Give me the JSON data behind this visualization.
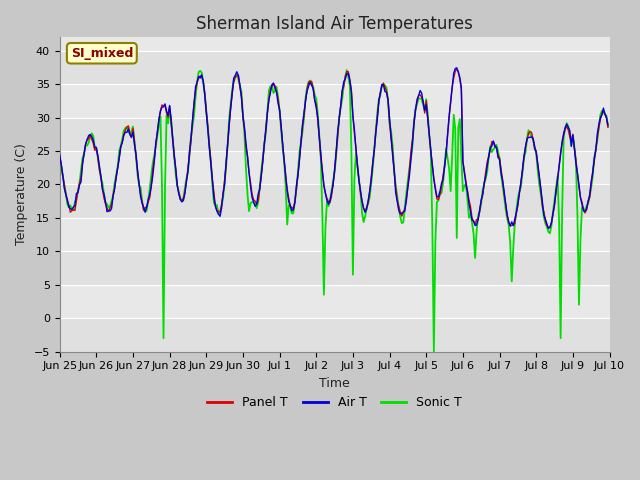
{
  "title": "Sherman Island Air Temperatures",
  "xlabel": "Time",
  "ylabel": "Temperature (C)",
  "ylim": [
    -5,
    42
  ],
  "yticks": [
    -5,
    0,
    5,
    10,
    15,
    20,
    25,
    30,
    35,
    40
  ],
  "xtick_labels": [
    "Jun 25",
    "Jun 26",
    "Jun 27",
    "Jun 28",
    "Jun 29",
    "Jun 30",
    "Jul 1",
    "Jul 2",
    "Jul 3",
    "Jul 4",
    "Jul 5",
    "Jul 6",
    "Jul 7",
    "Jul 8",
    "Jul 9",
    "Jul 10"
  ],
  "legend_label": "SI_mixed",
  "legend_box_facecolor": "#ffffcc",
  "legend_box_edgecolor": "#8B8000",
  "legend_text_color": "#8B0000",
  "panel_t_color": "#dd0000",
  "air_t_color": "#0000dd",
  "sonic_t_color": "#00dd00",
  "fig_facecolor": "#c8c8c8",
  "ax_facecolor": "#e8e8e8",
  "band_color_dark": "#d0d0d0",
  "band_color_light": "#e8e8e8",
  "grid_color": "#ffffff",
  "line_width": 1.0,
  "title_fontsize": 12,
  "label_fontsize": 9,
  "tick_fontsize": 8
}
